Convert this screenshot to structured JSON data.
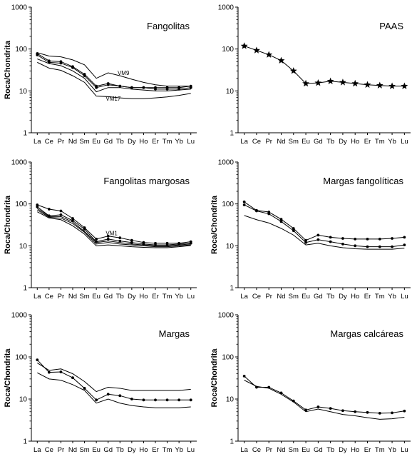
{
  "chart_data": [
    {
      "type": "line",
      "title": "Fangolitas",
      "ylabel": "Roca/Chondrita",
      "yscale": "log",
      "ylim": [
        1,
        1000
      ],
      "yticks": [
        "1",
        "10",
        "100",
        "1000"
      ],
      "categories": [
        "La",
        "Ce",
        "Pr",
        "Nd",
        "Sm",
        "Eu",
        "Gd",
        "Tb",
        "Dy",
        "Ho",
        "Er",
        "Tm",
        "Yb",
        "Lu"
      ],
      "annotations": [
        {
          "text": "VM9",
          "x": "Tb",
          "y": 24
        },
        {
          "text": "VM17",
          "x": "Gd",
          "y": 5.8
        }
      ],
      "series": [
        {
          "label": "VM9",
          "marker": "none",
          "values": [
            82,
            68,
            65,
            55,
            42,
            20,
            27,
            23,
            19,
            16,
            14,
            13,
            13,
            13
          ]
        },
        {
          "label": "",
          "marker": "dot",
          "values": [
            78,
            52,
            50,
            38,
            25,
            13,
            15,
            13,
            12,
            12,
            12,
            12,
            12,
            13
          ]
        },
        {
          "label": "",
          "marker": "dot",
          "values": [
            72,
            48,
            46,
            36,
            23,
            12,
            14,
            13,
            12,
            12,
            11,
            11,
            11,
            12
          ]
        },
        {
          "label": "",
          "marker": "none",
          "values": [
            58,
            45,
            40,
            30,
            20,
            9.5,
            12,
            12,
            11,
            10.5,
            10,
            10,
            10.5,
            11
          ]
        },
        {
          "label": "VM17",
          "marker": "none",
          "values": [
            48,
            35,
            31,
            23,
            16,
            7.5,
            7.3,
            6.8,
            6.5,
            6.5,
            6.8,
            7.2,
            7.8,
            8.7
          ]
        }
      ]
    },
    {
      "type": "line",
      "title": "PAAS",
      "ylabel": "",
      "yscale": "log",
      "ylim": [
        1,
        1000
      ],
      "yticks": [
        "1",
        "10",
        "100",
        "1000"
      ],
      "categories": [
        "La",
        "Ce",
        "Pr",
        "Nd",
        "Sm",
        "Eu",
        "Gd",
        "Tb",
        "Dy",
        "Ho",
        "Er",
        "Tm",
        "Yb",
        "Lu"
      ],
      "annotations": [],
      "series": [
        {
          "label": "",
          "marker": "star",
          "values": [
            118,
            93,
            73,
            53,
            30,
            15,
            15.5,
            17,
            16,
            15,
            14,
            13.5,
            13,
            13
          ]
        }
      ]
    },
    {
      "type": "line",
      "title": "Fangolitas margosas",
      "ylabel": "Roca/Chondrita",
      "yscale": "log",
      "ylim": [
        1,
        1000
      ],
      "yticks": [
        "1",
        "10",
        "100",
        "1000"
      ],
      "categories": [
        "La",
        "Ce",
        "Pr",
        "Nd",
        "Sm",
        "Eu",
        "Gd",
        "Tb",
        "Dy",
        "Ho",
        "Er",
        "Tm",
        "Yb",
        "Lu"
      ],
      "annotations": [
        {
          "text": "VM1",
          "x": "Gd",
          "y": 18
        }
      ],
      "series": [
        {
          "label": "VM1",
          "marker": "dot",
          "values": [
            95,
            75,
            68,
            45,
            27,
            14.5,
            17,
            15.5,
            13.5,
            12,
            11.5,
            11.5,
            11.5,
            12.5
          ]
        },
        {
          "label": "",
          "marker": "dot",
          "values": [
            85,
            52,
            55,
            40,
            25,
            12.5,
            14.5,
            13,
            12,
            11,
            10.5,
            10.5,
            11,
            11.5
          ]
        },
        {
          "label": "",
          "marker": "none",
          "values": [
            78,
            50,
            50,
            37,
            22,
            12,
            13,
            12,
            11,
            10.5,
            10,
            10,
            10.5,
            11
          ]
        },
        {
          "label": "",
          "marker": "none",
          "values": [
            72,
            48,
            46,
            34,
            21,
            11,
            12,
            11,
            10.5,
            10,
            9.5,
            9.5,
            10,
            10.5
          ]
        },
        {
          "label": "",
          "marker": "none",
          "values": [
            65,
            46,
            42,
            30,
            19,
            10,
            10.5,
            10,
            9.5,
            9.2,
            9,
            9,
            9.5,
            10.2
          ]
        }
      ]
    },
    {
      "type": "line",
      "title": "Margas fangolíticas",
      "ylabel": "Roca/Chondrita",
      "yscale": "log",
      "ylim": [
        1,
        1000
      ],
      "yticks": [
        "1",
        "10",
        "100",
        "1000"
      ],
      "categories": [
        "La",
        "Ce",
        "Pr",
        "Nd",
        "Sm",
        "Eu",
        "Gd",
        "Tb",
        "Dy",
        "Ho",
        "Er",
        "Tm",
        "Yb",
        "Lu"
      ],
      "annotations": [],
      "series": [
        {
          "label": "",
          "marker": "dot",
          "values": [
            112,
            70,
            64,
            43,
            26,
            13.5,
            18,
            16,
            15,
            14.5,
            14.5,
            14.5,
            15,
            16
          ]
        },
        {
          "label": "",
          "marker": "dot",
          "values": [
            95,
            68,
            58,
            38,
            23,
            12,
            14,
            12.5,
            11,
            10,
            9.5,
            9.5,
            9.5,
            10.5
          ]
        },
        {
          "label": "",
          "marker": "none",
          "values": [
            53,
            42,
            35,
            26,
            18,
            10.5,
            11.5,
            10,
            9,
            8.5,
            8.3,
            8.3,
            8.3,
            8.8
          ]
        }
      ]
    },
    {
      "type": "line",
      "title": "Margas",
      "ylabel": "Roca/Chondrita",
      "yscale": "log",
      "ylim": [
        1,
        1000
      ],
      "yticks": [
        "1",
        "10",
        "100",
        "1000"
      ],
      "categories": [
        "La",
        "Ce",
        "Pr",
        "Nd",
        "Sm",
        "Eu",
        "Gd",
        "Tb",
        "Dy",
        "Ho",
        "Er",
        "Tm",
        "Yb",
        "Lu"
      ],
      "annotations": [],
      "series": [
        {
          "label": "",
          "marker": "none",
          "values": [
            72,
            48,
            52,
            40,
            26,
            15,
            19,
            18,
            16,
            16,
            16,
            16,
            16,
            17
          ]
        },
        {
          "label": "",
          "marker": "dot",
          "values": [
            85,
            43,
            44,
            32,
            18,
            9.5,
            13,
            12,
            10,
            9.5,
            9.5,
            9.5,
            9.5,
            9.5
          ]
        },
        {
          "label": "",
          "marker": "none",
          "values": [
            42,
            30,
            28,
            22,
            16,
            8,
            10,
            8,
            7,
            6.5,
            6.2,
            6.2,
            6.2,
            6.5
          ]
        }
      ]
    },
    {
      "type": "line",
      "title": "Margas calcáreas",
      "ylabel": "Roca/Chondrita",
      "yscale": "log",
      "ylim": [
        1,
        1000
      ],
      "yticks": [
        "1",
        "10",
        "100",
        "1000"
      ],
      "categories": [
        "La",
        "Ce",
        "Pr",
        "Nd",
        "Sm",
        "Eu",
        "Gd",
        "Tb",
        "Dy",
        "Ho",
        "Er",
        "Tm",
        "Yb",
        "Lu"
      ],
      "annotations": [],
      "series": [
        {
          "label": "",
          "marker": "dot",
          "values": [
            35,
            19,
            19,
            14,
            9,
            5.5,
            6.5,
            6,
            5.3,
            5,
            4.8,
            4.6,
            4.7,
            5.2
          ]
        },
        {
          "label": "",
          "marker": "none",
          "values": [
            28,
            20,
            18,
            13,
            8.5,
            5,
            5.8,
            5,
            4.3,
            4,
            3.6,
            3.3,
            3.4,
            3.7
          ]
        }
      ]
    }
  ]
}
